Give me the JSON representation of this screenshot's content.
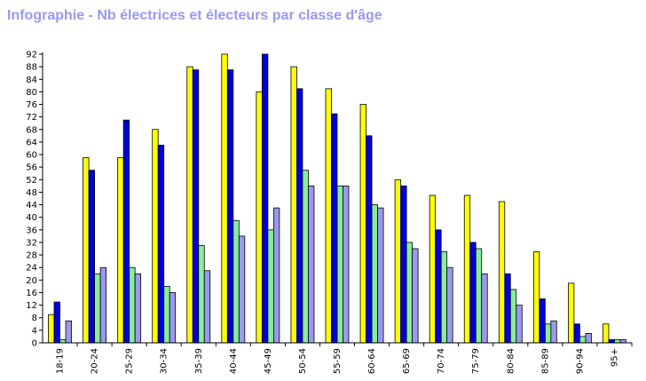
{
  "chart_data": {
    "type": "bar",
    "title": "Infographie - Nb électrices et électeurs par classe d'âge",
    "xlabel": "",
    "ylabel": "",
    "ylim": [
      0,
      92
    ],
    "yticks": [
      0,
      4,
      8,
      12,
      16,
      20,
      24,
      28,
      32,
      36,
      40,
      44,
      48,
      52,
      56,
      60,
      64,
      68,
      72,
      76,
      80,
      84,
      88,
      92
    ],
    "grid": false,
    "categories": [
      "18-19",
      "20-24",
      "25-29",
      "30-34",
      "35-39",
      "40-44",
      "45-49",
      "50-54",
      "55-59",
      "60-64",
      "65-69",
      "70-74",
      "75-79",
      "80-84",
      "85-89",
      "90-94",
      "95+"
    ],
    "series": [
      {
        "color": "#ffff00",
        "values": [
          9,
          59,
          59,
          68,
          88,
          92,
          80,
          88,
          81,
          76,
          52,
          47,
          47,
          45,
          29,
          19,
          6
        ]
      },
      {
        "color": "#0000dd",
        "values": [
          13,
          55,
          71,
          63,
          87,
          87,
          92,
          81,
          73,
          66,
          50,
          36,
          32,
          22,
          14,
          6,
          1
        ]
      },
      {
        "color": "#88ee99",
        "values": [
          1,
          22,
          24,
          18,
          31,
          39,
          36,
          55,
          50,
          44,
          32,
          29,
          30,
          17,
          6,
          2,
          1
        ]
      },
      {
        "color": "#9999ee",
        "values": [
          7,
          24,
          22,
          16,
          23,
          34,
          43,
          50,
          50,
          43,
          30,
          24,
          22,
          12,
          7,
          3,
          1
        ]
      }
    ]
  }
}
